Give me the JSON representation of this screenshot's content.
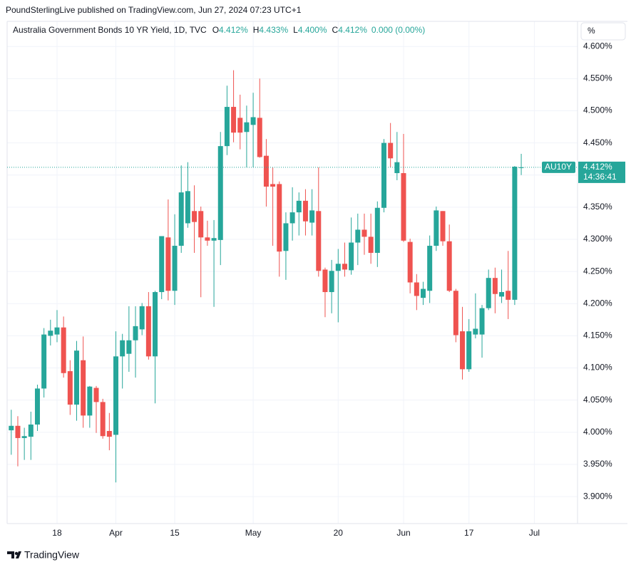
{
  "header": {
    "published": "PoundSterlingLive published on TradingView.com, Jun 27, 2024 07:23 UTC+1"
  },
  "chart_data": {
    "type": "candlestick",
    "title": "Australia Government Bonds 10 YR Yield, 1D, TVC",
    "ohlc_legend": [
      {
        "label": "O",
        "value": "4.412%"
      },
      {
        "label": "H",
        "value": "4.433%"
      },
      {
        "label": "L",
        "value": "4.400%"
      },
      {
        "label": "C",
        "value": "4.412%"
      }
    ],
    "change": "0.000 (0.00%)",
    "scale_mode": "%",
    "symbol": "AU10Y",
    "last_price": {
      "value": 4.412,
      "label": "4.412%"
    },
    "countdown": "14:36:41",
    "up_color": "#26a69a",
    "down_color": "#ef5350",
    "open": [
      4.003,
      4.01,
      3.991,
      3.993,
      4.012,
      4.068,
      4.15,
      4.152,
      4.163,
      4.095,
      4.043,
      4.112,
      4.026,
      4.069,
      4.047,
      4.002,
      3.996,
      4.118,
      4.122,
      4.143,
      4.16,
      4.196,
      4.118,
      4.218,
      4.303,
      4.22,
      4.29,
      4.325,
      4.344,
      4.344,
      4.303,
      4.298,
      4.299,
      4.445,
      4.506,
      4.489,
      4.467,
      4.478,
      4.489,
      4.43,
      4.386,
      4.386,
      4.282,
      4.325,
      4.342,
      4.36,
      4.326,
      4.344,
      4.253,
      4.218,
      4.251,
      4.262,
      4.252,
      4.295,
      4.315,
      4.304,
      4.279,
      4.349,
      4.45,
      4.403,
      4.403,
      4.296,
      4.233,
      4.209,
      4.22,
      4.29,
      4.344,
      4.297,
      4.22,
      4.157,
      4.098,
      4.152,
      4.152,
      4.193,
      4.24,
      4.211,
      4.22,
      4.206,
      4.412
    ],
    "high": [
      4.035,
      4.025,
      4.007,
      4.032,
      4.074,
      4.162,
      4.175,
      4.19,
      4.18,
      4.112,
      4.142,
      4.149,
      4.072,
      4.072,
      4.052,
      4.03,
      4.157,
      4.153,
      4.196,
      4.196,
      4.201,
      4.218,
      4.22,
      4.305,
      4.362,
      4.339,
      4.415,
      4.42,
      4.384,
      4.351,
      4.329,
      4.33,
      4.467,
      4.539,
      4.563,
      4.525,
      4.508,
      4.528,
      4.55,
      4.456,
      4.412,
      4.39,
      4.342,
      4.381,
      4.373,
      4.378,
      4.378,
      4.412,
      4.256,
      4.268,
      4.285,
      4.295,
      4.334,
      4.34,
      4.34,
      4.34,
      4.359,
      4.456,
      4.481,
      4.467,
      4.464,
      4.301,
      4.246,
      4.234,
      4.306,
      4.351,
      4.344,
      4.323,
      4.223,
      4.195,
      4.176,
      4.216,
      4.198,
      4.253,
      4.256,
      4.253,
      4.282,
      4.414,
      4.433
    ],
    "low": [
      3.965,
      3.947,
      3.957,
      3.957,
      4.002,
      4.054,
      4.135,
      4.14,
      4.085,
      4.027,
      4.018,
      4.007,
      4.007,
      3.999,
      3.99,
      3.972,
      3.922,
      4.068,
      4.094,
      4.085,
      4.151,
      4.113,
      4.045,
      4.207,
      4.205,
      4.198,
      4.279,
      4.318,
      4.279,
      4.21,
      4.29,
      4.195,
      4.26,
      4.431,
      4.451,
      4.44,
      4.412,
      4.412,
      4.427,
      4.351,
      4.29,
      4.242,
      4.237,
      4.298,
      4.306,
      4.306,
      4.306,
      4.242,
      4.179,
      4.185,
      4.171,
      4.242,
      4.245,
      4.26,
      4.276,
      4.262,
      4.257,
      4.342,
      4.412,
      4.392,
      4.296,
      4.216,
      4.19,
      4.198,
      4.201,
      4.282,
      4.29,
      4.218,
      4.14,
      4.082,
      4.094,
      4.146,
      4.116,
      4.19,
      4.185,
      4.201,
      4.176,
      4.198,
      4.4
    ],
    "close": [
      4.01,
      3.991,
      3.994,
      4.012,
      4.068,
      4.152,
      4.158,
      4.163,
      4.092,
      4.043,
      4.127,
      4.026,
      4.071,
      4.047,
      3.994,
      3.993,
      4.118,
      4.143,
      4.143,
      4.165,
      4.196,
      4.118,
      4.218,
      4.305,
      4.22,
      4.29,
      4.373,
      4.375,
      4.327,
      4.303,
      4.298,
      4.302,
      4.445,
      4.506,
      4.466,
      4.466,
      4.482,
      4.49,
      4.428,
      4.382,
      4.382,
      4.281,
      4.325,
      4.342,
      4.36,
      4.328,
      4.345,
      4.251,
      4.218,
      4.251,
      4.262,
      4.253,
      4.295,
      4.315,
      4.304,
      4.279,
      4.349,
      4.45,
      4.426,
      4.42,
      4.298,
      4.233,
      4.212,
      4.223,
      4.29,
      4.345,
      4.297,
      4.22,
      4.151,
      4.098,
      4.157,
      4.161,
      4.193,
      4.24,
      4.215,
      4.218,
      4.206,
      4.413,
      4.412
    ],
    "xticks": [
      {
        "value": 7,
        "label": "18"
      },
      {
        "value": 16,
        "label": "Apr"
      },
      {
        "value": 25,
        "label": "15"
      },
      {
        "value": 37,
        "label": "May"
      },
      {
        "value": 50,
        "label": "20"
      },
      {
        "value": 60,
        "label": "Jun"
      },
      {
        "value": 70,
        "label": "17"
      },
      {
        "value": 80,
        "label": "Jul"
      }
    ],
    "ylim": [
      3.858,
      4.639
    ],
    "yticks": [
      {
        "value": 3.9,
        "label": "3.900%"
      },
      {
        "value": 3.95,
        "label": "3.950%"
      },
      {
        "value": 4.0,
        "label": "4.000%"
      },
      {
        "value": 4.05,
        "label": "4.050%"
      },
      {
        "value": 4.1,
        "label": "4.100%"
      },
      {
        "value": 4.15,
        "label": "4.150%"
      },
      {
        "value": 4.2,
        "label": "4.200%"
      },
      {
        "value": 4.25,
        "label": "4.250%"
      },
      {
        "value": 4.3,
        "label": "4.300%"
      },
      {
        "value": 4.35,
        "label": "4.350%"
      },
      {
        "value": 4.4,
        "label": "4.400%"
      },
      {
        "value": 4.45,
        "label": "4.450%"
      },
      {
        "value": 4.5,
        "label": "4.500%"
      },
      {
        "value": 4.55,
        "label": "4.550%"
      },
      {
        "value": 4.6,
        "label": "4.600%"
      }
    ],
    "grid": true
  },
  "footer": {
    "brand": "TradingView"
  }
}
